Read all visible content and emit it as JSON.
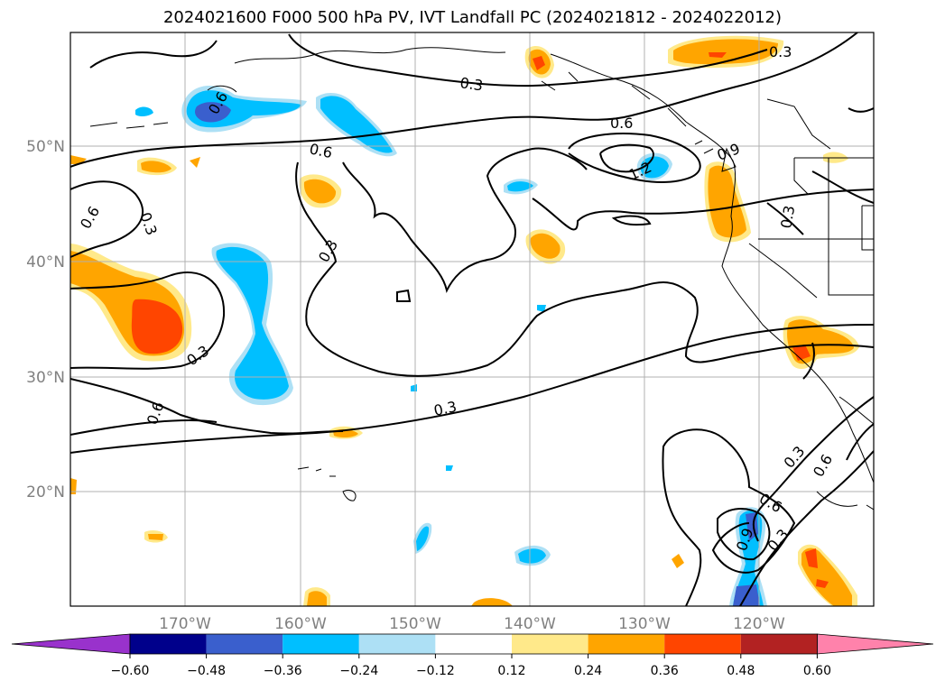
{
  "title": "2024021600 F000 500 hPa PV, IVT Landfall PC (2024021812 - 2024022012)",
  "map": {
    "lat_labels": [
      "50°N",
      "40°N",
      "30°N",
      "20°N"
    ],
    "lon_labels": [
      "170°W",
      "160°W",
      "150°W",
      "140°W",
      "130°W",
      "120°W"
    ],
    "contour_labels": [
      "0.3",
      "0.3",
      "0.6",
      "0.6",
      "0.6",
      "0.3",
      "0.3",
      "0.6",
      "0.3",
      "0.9",
      "1.2",
      "0.3",
      "0.6",
      "0.3",
      "0.3",
      "0.6",
      "0.6",
      "0.9",
      "0.3",
      "0.3"
    ]
  },
  "colorbar": {
    "ticks": [
      "−0.60",
      "−0.48",
      "−0.36",
      "−0.24",
      "−0.12",
      "0.12",
      "0.24",
      "0.36",
      "0.48",
      "0.60"
    ],
    "colors": {
      "below": "#9932CC",
      "b1": "#00008B",
      "b2": "#3A5FCD",
      "b3": "#00BFFF",
      "b4": "#ADE0F5",
      "neutral": "#FFFFFF",
      "r1": "#FFE98A",
      "r2": "#FFA500",
      "r3": "#FF4500",
      "r4": "#B22222",
      "above": "#FF82AB"
    }
  }
}
